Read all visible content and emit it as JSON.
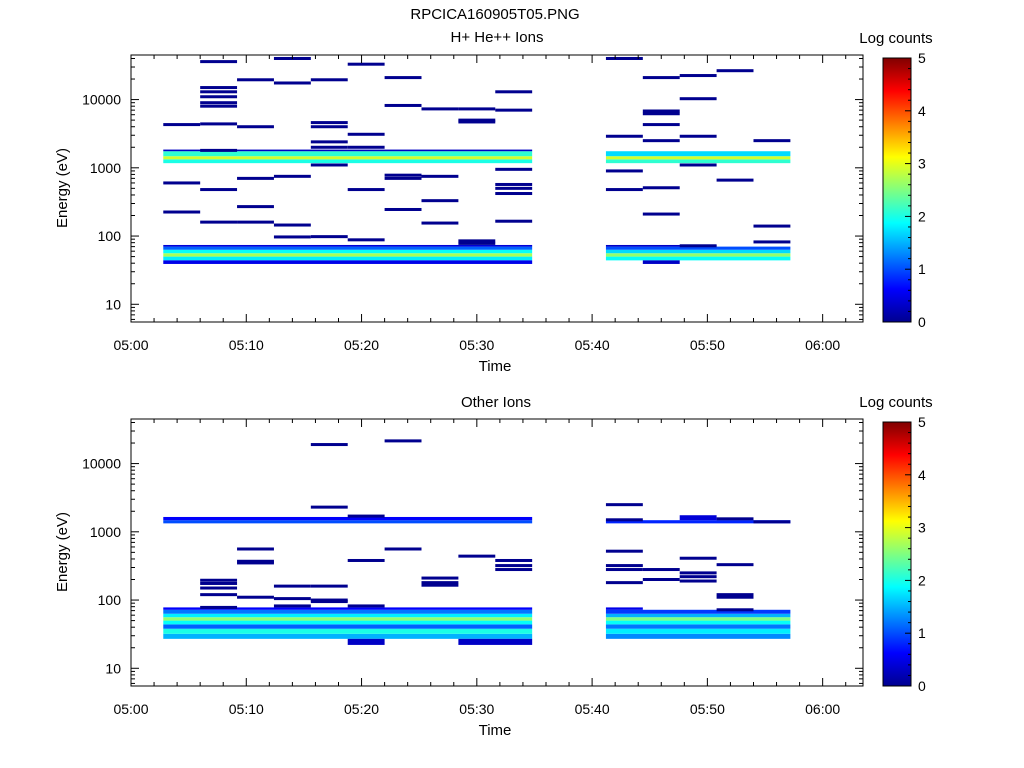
{
  "title": "RPCICA160905T05.PNG",
  "colors": {
    "background": "#ffffff",
    "axis": "#000000",
    "gap": "#ffffff"
  },
  "colormap": [
    "#00008f",
    "#0000ff",
    "#0080ff",
    "#00ffff",
    "#80ff80",
    "#ffff00",
    "#ff8000",
    "#ff0000",
    "#800000"
  ],
  "chart_data": [
    {
      "type": "heatmap",
      "title": "H+ He++ Ions",
      "xlabel": "Time",
      "ylabel": "Energy (eV)",
      "x_ticks": [
        "05:00",
        "05:10",
        "05:20",
        "05:30",
        "05:40",
        "05:50",
        "06:00"
      ],
      "x_tick_minutes": [
        0,
        10,
        20,
        30,
        40,
        50,
        60
      ],
      "x_range_minutes": [
        0,
        63.5
      ],
      "y_scale": "log",
      "y_range": [
        5.5,
        45000
      ],
      "y_tick_labels": [
        "10",
        "100",
        "1000",
        "10000"
      ],
      "y_tick_values": [
        10,
        100,
        1000,
        10000
      ],
      "colorbar": {
        "label": "Log counts",
        "range": [
          0,
          5
        ],
        "tick_labels": [
          "0",
          "1",
          "2",
          "3",
          "4",
          "5"
        ]
      },
      "time_bins_start_minutes": [
        2.8,
        6.0,
        9.2,
        12.4,
        15.6,
        18.8,
        22.0,
        25.2,
        28.4,
        31.6,
        41.2,
        44.4,
        47.6,
        50.8,
        54.0
      ],
      "time_bin_width_minutes": 3.2,
      "cells": [
        {
          "t0": 2.8,
          "t1": 34.8,
          "e0": 1170,
          "e1": 1330,
          "v": 2.0
        },
        {
          "t0": 2.8,
          "t1": 34.8,
          "e0": 1330,
          "e1": 1480,
          "v": 2.9
        },
        {
          "t0": 2.8,
          "t1": 34.8,
          "e0": 1480,
          "e1": 1750,
          "v": 2.1
        },
        {
          "t0": 2.8,
          "t1": 34.8,
          "e0": 44,
          "e1": 50,
          "v": 1.8
        },
        {
          "t0": 2.8,
          "t1": 34.8,
          "e0": 50,
          "e1": 56,
          "v": 2.7
        },
        {
          "t0": 2.8,
          "t1": 34.8,
          "e0": 56,
          "e1": 63,
          "v": 1.9
        },
        {
          "t0": 2.8,
          "t1": 34.8,
          "e0": 63,
          "e1": 70,
          "v": 1.1
        },
        {
          "t0": 2.8,
          "t1": 34.8,
          "e0": 39,
          "e1": 44,
          "v": 0.5
        },
        {
          "t0": 2.8,
          "t1": 34.8,
          "e0": 70,
          "e1": 74,
          "v": 0.4
        },
        {
          "t0": 2.8,
          "t1": 34.8,
          "e0": 1750,
          "e1": 1850,
          "v": 0.3
        },
        {
          "t0": 41.2,
          "t1": 57.2,
          "e0": 1170,
          "e1": 1330,
          "v": 2.1
        },
        {
          "t0": 41.2,
          "t1": 57.2,
          "e0": 1330,
          "e1": 1480,
          "v": 2.9
        },
        {
          "t0": 41.2,
          "t1": 57.2,
          "e0": 1480,
          "e1": 1750,
          "v": 1.7
        },
        {
          "t0": 41.2,
          "t1": 57.2,
          "e0": 44,
          "e1": 50,
          "v": 1.9
        },
        {
          "t0": 41.2,
          "t1": 57.2,
          "e0": 50,
          "e1": 56,
          "v": 2.6
        },
        {
          "t0": 41.2,
          "t1": 57.2,
          "e0": 56,
          "e1": 63,
          "v": 1.7
        },
        {
          "t0": 41.2,
          "t1": 57.2,
          "e0": 63,
          "e1": 70,
          "v": 1.0
        },
        {
          "t0": 41.2,
          "t1": 50.8,
          "e0": 70,
          "e1": 74,
          "v": 0.3
        },
        {
          "t0": 44.4,
          "t1": 47.6,
          "e0": 39,
          "e1": 44,
          "v": 0.3
        }
      ],
      "single_counts_t_e": [
        [
          2.8,
          4300
        ],
        [
          2.8,
          600
        ],
        [
          2.8,
          225
        ],
        [
          6.0,
          36000
        ],
        [
          6.0,
          15000
        ],
        [
          6.0,
          13000
        ],
        [
          6.0,
          11000
        ],
        [
          6.0,
          9000
        ],
        [
          6.0,
          8000
        ],
        [
          6.0,
          4400
        ],
        [
          6.0,
          1800
        ],
        [
          6.0,
          480
        ],
        [
          6.0,
          160
        ],
        [
          9.2,
          19500
        ],
        [
          9.2,
          4000
        ],
        [
          9.2,
          700
        ],
        [
          9.2,
          270
        ],
        [
          9.2,
          160
        ],
        [
          12.4,
          40000
        ],
        [
          12.4,
          17500
        ],
        [
          12.4,
          750
        ],
        [
          12.4,
          145
        ],
        [
          12.4,
          97
        ],
        [
          15.6,
          19500
        ],
        [
          15.6,
          4600
        ],
        [
          15.6,
          4000
        ],
        [
          15.6,
          2400
        ],
        [
          15.6,
          2000
        ],
        [
          15.6,
          1100
        ],
        [
          15.6,
          98
        ],
        [
          18.8,
          33000
        ],
        [
          18.8,
          3100
        ],
        [
          18.8,
          2000
        ],
        [
          18.8,
          480
        ],
        [
          18.8,
          88
        ],
        [
          22.0,
          21000
        ],
        [
          22.0,
          8200
        ],
        [
          22.0,
          780
        ],
        [
          22.0,
          700
        ],
        [
          22.0,
          245
        ],
        [
          25.2,
          7300
        ],
        [
          25.2,
          750
        ],
        [
          25.2,
          330
        ],
        [
          25.2,
          155
        ],
        [
          28.4,
          7300
        ],
        [
          28.4,
          5000
        ],
        [
          28.4,
          4700
        ],
        [
          28.4,
          85
        ],
        [
          28.4,
          78
        ],
        [
          31.6,
          13000
        ],
        [
          31.6,
          7000
        ],
        [
          31.6,
          950
        ],
        [
          31.6,
          570
        ],
        [
          31.6,
          500
        ],
        [
          31.6,
          420
        ],
        [
          31.6,
          165
        ],
        [
          41.2,
          40000
        ],
        [
          41.2,
          2900
        ],
        [
          41.2,
          900
        ],
        [
          41.2,
          480
        ],
        [
          44.4,
          21000
        ],
        [
          44.4,
          6800
        ],
        [
          44.4,
          6200
        ],
        [
          44.4,
          4300
        ],
        [
          44.4,
          2500
        ],
        [
          44.4,
          510
        ],
        [
          44.4,
          210
        ],
        [
          47.6,
          22500
        ],
        [
          47.6,
          10300
        ],
        [
          47.6,
          2900
        ],
        [
          47.6,
          1100
        ],
        [
          47.6,
          72
        ],
        [
          50.8,
          26500
        ],
        [
          50.8,
          660
        ],
        [
          54.0,
          2500
        ],
        [
          54.0,
          140
        ],
        [
          54.0,
          82
        ]
      ]
    },
    {
      "type": "heatmap",
      "title": "Other Ions",
      "xlabel": "Time",
      "ylabel": "Energy (eV)",
      "x_ticks": [
        "05:00",
        "05:10",
        "05:20",
        "05:30",
        "05:40",
        "05:50",
        "06:00"
      ],
      "x_tick_minutes": [
        0,
        10,
        20,
        30,
        40,
        50,
        60
      ],
      "x_range_minutes": [
        0,
        63.5
      ],
      "y_scale": "log",
      "y_range": [
        5.5,
        45000
      ],
      "y_tick_labels": [
        "10",
        "100",
        "1000",
        "10000"
      ],
      "y_tick_values": [
        10,
        100,
        1000,
        10000
      ],
      "colorbar": {
        "label": "Log counts",
        "range": [
          0,
          5
        ],
        "tick_labels": [
          "0",
          "1",
          "2",
          "3",
          "4",
          "5"
        ]
      },
      "time_bins_start_minutes": [
        2.8,
        6.0,
        9.2,
        12.4,
        15.6,
        18.8,
        22.0,
        25.2,
        28.4,
        31.6,
        41.2,
        44.4,
        47.6,
        50.8,
        54.0
      ],
      "time_bin_width_minutes": 3.2,
      "cells": [
        {
          "t0": 2.8,
          "t1": 34.8,
          "e0": 1330,
          "e1": 1480,
          "v": 1.0
        },
        {
          "t0": 2.8,
          "t1": 34.8,
          "e0": 1480,
          "e1": 1650,
          "v": 0.6
        },
        {
          "t0": 2.8,
          "t1": 34.8,
          "e0": 27,
          "e1": 32,
          "v": 1.5
        },
        {
          "t0": 2.8,
          "t1": 34.8,
          "e0": 32,
          "e1": 38,
          "v": 2.0
        },
        {
          "t0": 2.8,
          "t1": 34.8,
          "e0": 38,
          "e1": 44,
          "v": 1.1
        },
        {
          "t0": 2.8,
          "t1": 34.8,
          "e0": 44,
          "e1": 50,
          "v": 1.9
        },
        {
          "t0": 2.8,
          "t1": 34.8,
          "e0": 50,
          "e1": 56,
          "v": 2.6
        },
        {
          "t0": 2.8,
          "t1": 34.8,
          "e0": 56,
          "e1": 63,
          "v": 1.8
        },
        {
          "t0": 2.8,
          "t1": 34.8,
          "e0": 63,
          "e1": 72,
          "v": 1.2
        },
        {
          "t0": 2.8,
          "t1": 34.8,
          "e0": 72,
          "e1": 78,
          "v": 0.6
        },
        {
          "t0": 18.8,
          "t1": 22.0,
          "e0": 22,
          "e1": 27,
          "v": 0.3
        },
        {
          "t0": 28.4,
          "t1": 34.8,
          "e0": 22,
          "e1": 27,
          "v": 0.3
        },
        {
          "t0": 41.2,
          "t1": 57.2,
          "e0": 27,
          "e1": 32,
          "v": 1.3
        },
        {
          "t0": 41.2,
          "t1": 57.2,
          "e0": 32,
          "e1": 38,
          "v": 1.8
        },
        {
          "t0": 41.2,
          "t1": 57.2,
          "e0": 38,
          "e1": 44,
          "v": 1.2
        },
        {
          "t0": 41.2,
          "t1": 57.2,
          "e0": 44,
          "e1": 50,
          "v": 1.9
        },
        {
          "t0": 41.2,
          "t1": 57.2,
          "e0": 50,
          "e1": 56,
          "v": 2.5
        },
        {
          "t0": 41.2,
          "t1": 57.2,
          "e0": 56,
          "e1": 63,
          "v": 1.5
        },
        {
          "t0": 41.2,
          "t1": 57.2,
          "e0": 63,
          "e1": 72,
          "v": 0.9
        },
        {
          "t0": 41.2,
          "t1": 44.4,
          "e0": 72,
          "e1": 78,
          "v": 0.5
        },
        {
          "t0": 41.2,
          "t1": 57.2,
          "e0": 1330,
          "e1": 1480,
          "v": 0.8
        },
        {
          "t0": 47.6,
          "t1": 50.8,
          "e0": 1480,
          "e1": 1750,
          "v": 0.4
        }
      ],
      "single_counts_t_e": [
        [
          6.0,
          195
        ],
        [
          6.0,
          175
        ],
        [
          6.0,
          150
        ],
        [
          6.0,
          120
        ],
        [
          6.0,
          78
        ],
        [
          9.2,
          560
        ],
        [
          9.2,
          370
        ],
        [
          9.2,
          350
        ],
        [
          9.2,
          110
        ],
        [
          12.4,
          160
        ],
        [
          12.4,
          105
        ],
        [
          12.4,
          82
        ],
        [
          15.6,
          19000
        ],
        [
          15.6,
          2300
        ],
        [
          15.6,
          160
        ],
        [
          15.6,
          100
        ],
        [
          15.6,
          95
        ],
        [
          18.8,
          1700
        ],
        [
          18.8,
          380
        ],
        [
          18.8,
          82
        ],
        [
          22.0,
          21500
        ],
        [
          22.0,
          560
        ],
        [
          25.2,
          210
        ],
        [
          25.2,
          180
        ],
        [
          25.2,
          165
        ],
        [
          28.4,
          440
        ],
        [
          31.6,
          380
        ],
        [
          31.6,
          320
        ],
        [
          31.6,
          280
        ],
        [
          41.2,
          2500
        ],
        [
          41.2,
          1500
        ],
        [
          41.2,
          520
        ],
        [
          41.2,
          320
        ],
        [
          41.2,
          280
        ],
        [
          41.2,
          180
        ],
        [
          44.4,
          280
        ],
        [
          44.4,
          200
        ],
        [
          47.6,
          410
        ],
        [
          47.6,
          250
        ],
        [
          47.6,
          220
        ],
        [
          47.6,
          190
        ],
        [
          50.8,
          1550
        ],
        [
          50.8,
          330
        ],
        [
          50.8,
          120
        ],
        [
          50.8,
          110
        ],
        [
          50.8,
          72
        ],
        [
          54.0,
          1400
        ]
      ]
    }
  ]
}
